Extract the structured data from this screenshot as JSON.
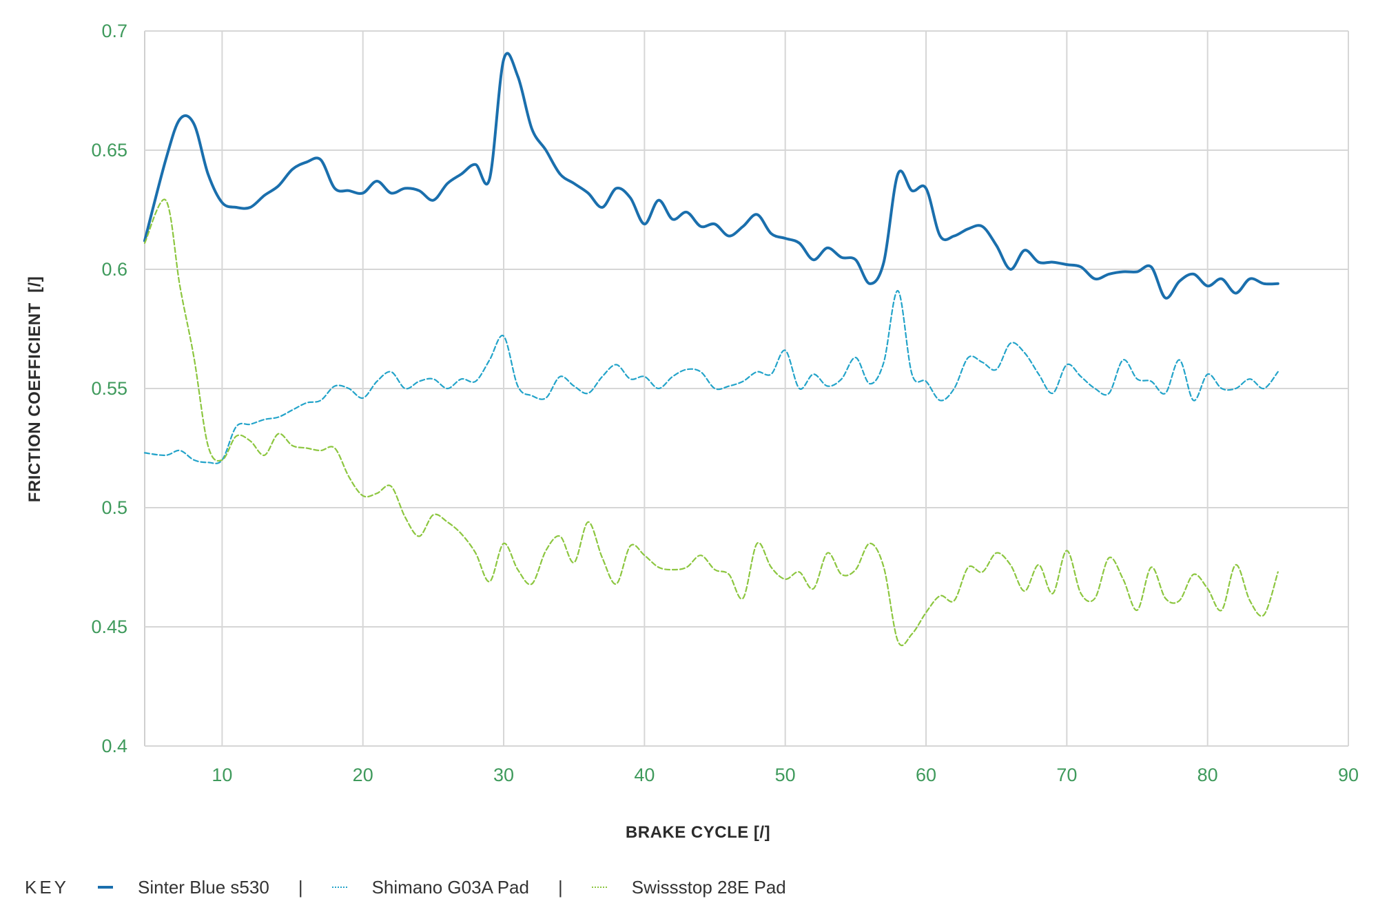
{
  "chart_data": {
    "type": "line",
    "title": "",
    "xlabel": "BRAKE CYCLE [/]",
    "ylabel": "FRICTION COEFFICIENT  [/]",
    "xlim": [
      4.5,
      90
    ],
    "ylim": [
      0.4,
      0.7
    ],
    "x_ticks": [
      10,
      20,
      30,
      40,
      50,
      60,
      70,
      80,
      90
    ],
    "x_tick_labels": [
      "10",
      "20",
      "30",
      "40",
      "50",
      "60",
      "70",
      "80",
      "90"
    ],
    "y_ticks": [
      0.4,
      0.45,
      0.5,
      0.55,
      0.6,
      0.65,
      0.7
    ],
    "y_tick_labels": [
      "0.4",
      "0.45",
      "0.5",
      "0.55",
      "0.6",
      "0.65",
      "0.7"
    ],
    "grid": true,
    "legend_placement": "bottom",
    "legend_title": "KEY",
    "legend_separator": "|",
    "x": [
      4.5,
      6,
      7,
      8,
      9,
      10,
      11,
      12,
      13,
      14,
      15,
      16,
      17,
      18,
      19,
      20,
      21,
      22,
      23,
      24,
      25,
      26,
      27,
      28,
      29,
      30,
      31,
      32,
      33,
      34,
      35,
      36,
      37,
      38,
      39,
      40,
      41,
      42,
      43,
      44,
      45,
      46,
      47,
      48,
      49,
      50,
      51,
      52,
      53,
      54,
      55,
      56,
      57,
      58,
      59,
      60,
      61,
      62,
      63,
      64,
      65,
      66,
      67,
      68,
      69,
      70,
      71,
      72,
      73,
      74,
      75,
      76,
      77,
      78,
      79,
      80,
      81,
      82,
      83,
      84,
      85
    ],
    "series": [
      {
        "name": "Sinter Blue s530",
        "color": "#1a6fad",
        "style": "solid",
        "values": [
          0.612,
          0.646,
          0.663,
          0.661,
          0.64,
          0.628,
          0.626,
          0.626,
          0.631,
          0.635,
          0.642,
          0.645,
          0.646,
          0.634,
          0.633,
          0.632,
          0.637,
          0.632,
          0.634,
          0.633,
          0.629,
          0.636,
          0.64,
          0.644,
          0.638,
          0.688,
          0.681,
          0.659,
          0.65,
          0.64,
          0.636,
          0.632,
          0.626,
          0.634,
          0.63,
          0.619,
          0.629,
          0.621,
          0.624,
          0.618,
          0.619,
          0.614,
          0.618,
          0.623,
          0.615,
          0.613,
          0.611,
          0.604,
          0.609,
          0.605,
          0.604,
          0.594,
          0.603,
          0.64,
          0.633,
          0.634,
          0.614,
          0.614,
          0.617,
          0.618,
          0.61,
          0.6,
          0.608,
          0.603,
          0.603,
          0.602,
          0.601,
          0.596,
          0.598,
          0.599,
          0.599,
          0.601,
          0.588,
          0.595,
          0.598,
          0.593,
          0.596,
          0.59,
          0.596,
          0.594,
          0.594
        ]
      },
      {
        "name": "Shimano G03A Pad",
        "color": "#22a3c9",
        "style": "dashed",
        "values": [
          0.523,
          0.522,
          0.524,
          0.52,
          0.519,
          0.52,
          0.534,
          0.535,
          0.537,
          0.538,
          0.541,
          0.544,
          0.545,
          0.551,
          0.55,
          0.546,
          0.553,
          0.557,
          0.55,
          0.553,
          0.554,
          0.55,
          0.554,
          0.553,
          0.562,
          0.572,
          0.551,
          0.547,
          0.546,
          0.555,
          0.551,
          0.548,
          0.555,
          0.56,
          0.554,
          0.555,
          0.55,
          0.555,
          0.558,
          0.557,
          0.55,
          0.551,
          0.553,
          0.557,
          0.556,
          0.566,
          0.55,
          0.556,
          0.551,
          0.554,
          0.563,
          0.552,
          0.561,
          0.591,
          0.556,
          0.553,
          0.545,
          0.55,
          0.563,
          0.561,
          0.558,
          0.569,
          0.565,
          0.556,
          0.548,
          0.56,
          0.555,
          0.55,
          0.548,
          0.562,
          0.554,
          0.553,
          0.548,
          0.562,
          0.545,
          0.556,
          0.55,
          0.55,
          0.554,
          0.55,
          0.557
        ]
      },
      {
        "name": "Swissstop 28E Pad",
        "color": "#8cc63f",
        "style": "dashed",
        "values": [
          0.611,
          0.629,
          0.593,
          0.563,
          0.526,
          0.52,
          0.53,
          0.528,
          0.522,
          0.531,
          0.526,
          0.525,
          0.524,
          0.525,
          0.513,
          0.505,
          0.506,
          0.509,
          0.496,
          0.488,
          0.497,
          0.494,
          0.489,
          0.481,
          0.469,
          0.485,
          0.474,
          0.468,
          0.482,
          0.488,
          0.477,
          0.494,
          0.479,
          0.468,
          0.484,
          0.48,
          0.475,
          0.474,
          0.475,
          0.48,
          0.474,
          0.472,
          0.462,
          0.485,
          0.475,
          0.47,
          0.473,
          0.466,
          0.481,
          0.472,
          0.474,
          0.485,
          0.475,
          0.444,
          0.447,
          0.456,
          0.463,
          0.461,
          0.475,
          0.473,
          0.481,
          0.476,
          0.465,
          0.476,
          0.464,
          0.482,
          0.464,
          0.462,
          0.479,
          0.47,
          0.457,
          0.475,
          0.462,
          0.461,
          0.472,
          0.466,
          0.457,
          0.476,
          0.461,
          0.455,
          0.473
        ]
      }
    ]
  }
}
